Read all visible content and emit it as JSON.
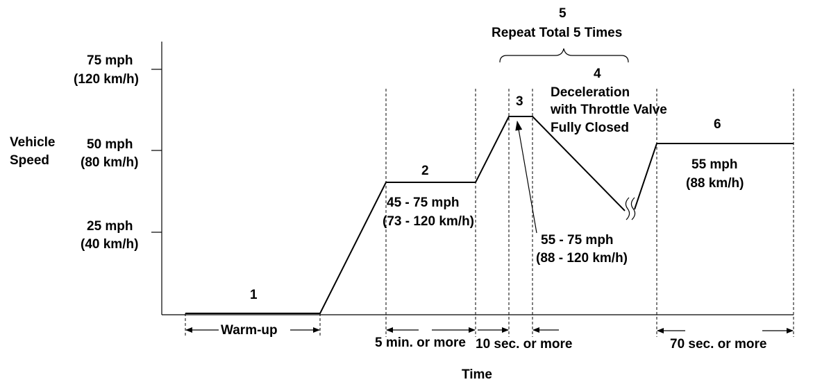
{
  "axes": {
    "y_label_line1": "Vehicle",
    "y_label_line2": "Speed",
    "x_label": "Time",
    "ticks": [
      {
        "mph": "75 mph",
        "kmh": "(120 km/h)"
      },
      {
        "mph": "50 mph",
        "kmh": "(80 km/h)"
      },
      {
        "mph": "25 mph",
        "kmh": "(40 km/h)"
      }
    ]
  },
  "steps": {
    "s1": "1",
    "s2": "2",
    "s2_speed": "45 - 75 mph",
    "s2_kmh": "(73 - 120 km/h)",
    "s3": "3",
    "s3_speed": "55 - 75 mph",
    "s3_kmh": "(88 - 120 km/h)",
    "s4": "4",
    "s4_line1": "Deceleration",
    "s4_line2": "with Throttle Valve",
    "s4_line3": "Fully Closed",
    "s5": "5",
    "s5_text": "Repeat Total 5 Times",
    "s6": "6",
    "s6_speed": "55 mph",
    "s6_kmh": "(88 km/h)"
  },
  "durations": {
    "warmup": "Warm-up",
    "d2": "5 min. or more",
    "d3": "10 sec. or more",
    "d6": "70 sec. or more"
  }
}
